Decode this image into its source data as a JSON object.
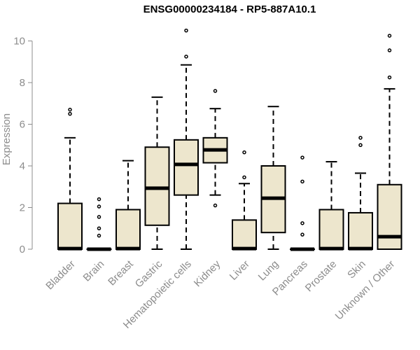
{
  "chart_data": {
    "type": "boxplot",
    "title": "ENSG00000234184 - RP5-887A10.1",
    "xlabel": "",
    "ylabel": "Expression",
    "ylim": [
      0,
      10.3
    ],
    "yticks": [
      "0",
      "2",
      "4",
      "6",
      "8",
      "10"
    ],
    "grid": false,
    "box_color": "#ede6cd",
    "categories": [
      "Bladder",
      "Brain",
      "Breast",
      "Gastric",
      "Hematopoietic cells",
      "Kidney",
      "Liver",
      "Lung",
      "Pancreas",
      "Prostate",
      "Skin",
      "Unknown / Other"
    ],
    "series": [
      {
        "whisker_low": 0,
        "q1": 0,
        "median": 0.03,
        "q3": 2.2,
        "whisker_high": 5.35,
        "outliers": [
          6.5,
          6.7
        ]
      },
      {
        "whisker_low": 0,
        "q1": 0,
        "median": 0,
        "q3": 0,
        "whisker_high": 0,
        "outliers": [
          0.65,
          1.0,
          1.55,
          2.05,
          2.4
        ]
      },
      {
        "whisker_low": 0,
        "q1": 0,
        "median": 0.03,
        "q3": 1.9,
        "whisker_high": 4.25,
        "outliers": []
      },
      {
        "whisker_low": 0,
        "q1": 1.15,
        "median": 2.93,
        "q3": 4.9,
        "whisker_high": 7.3,
        "outliers": []
      },
      {
        "whisker_low": 0,
        "q1": 2.6,
        "median": 4.07,
        "q3": 5.25,
        "whisker_high": 8.85,
        "outliers": [
          9.25,
          10.5
        ]
      },
      {
        "whisker_low": 2.6,
        "q1": 4.15,
        "median": 4.77,
        "q3": 5.35,
        "whisker_high": 6.75,
        "outliers": [
          2.1,
          7.6
        ]
      },
      {
        "whisker_low": 0,
        "q1": 0,
        "median": 0.03,
        "q3": 1.4,
        "whisker_high": 3.15,
        "outliers": [
          3.45,
          4.65
        ]
      },
      {
        "whisker_low": 0,
        "q1": 0.8,
        "median": 2.45,
        "q3": 4.0,
        "whisker_high": 6.85,
        "outliers": []
      },
      {
        "whisker_low": 0,
        "q1": 0,
        "median": 0,
        "q3": 0,
        "whisker_high": 0,
        "outliers": [
          0.7,
          1.25,
          3.25,
          4.4
        ]
      },
      {
        "whisker_low": 0,
        "q1": 0,
        "median": 0.03,
        "q3": 1.9,
        "whisker_high": 4.2,
        "outliers": []
      },
      {
        "whisker_low": 0,
        "q1": 0,
        "median": 0.03,
        "q3": 1.75,
        "whisker_high": 3.65,
        "outliers": [
          5.0,
          5.35
        ]
      },
      {
        "whisker_low": 0,
        "q1": 0,
        "median": 0.6,
        "q3": 3.1,
        "whisker_high": 7.7,
        "outliers": [
          8.25,
          9.55,
          10.25
        ]
      }
    ]
  }
}
